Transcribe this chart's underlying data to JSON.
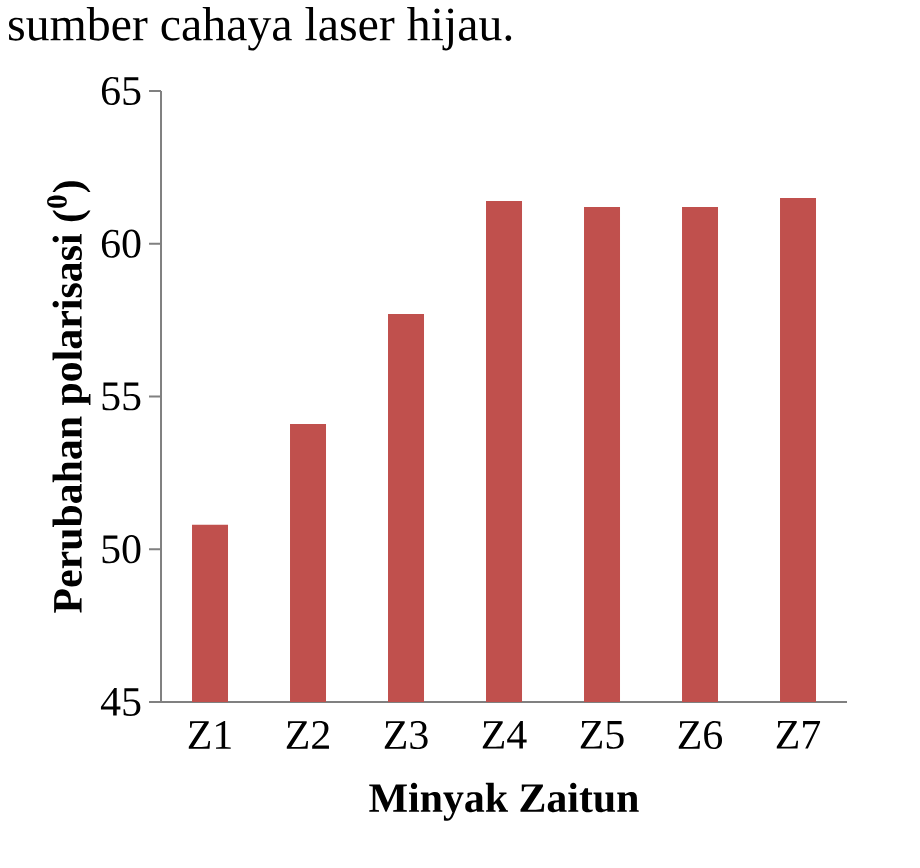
{
  "chart_data": {
    "type": "bar",
    "annotations": [
      "sumber cahaya laser hijau."
    ],
    "xlabel": "Minyak Zaitun",
    "ylabel": "Perubahan polarisasi ($^{0}$)",
    "categories": [
      "Z1",
      "Z2",
      "Z3",
      "Z4",
      "Z5",
      "Z6",
      "Z7"
    ],
    "values": [
      50.8,
      54.1,
      57.7,
      61.4,
      61.2,
      61.2,
      61.5
    ],
    "color": "#c0504d",
    "ylim": [
      45,
      65
    ],
    "yticks": [
      45,
      50,
      55,
      60,
      65
    ]
  }
}
